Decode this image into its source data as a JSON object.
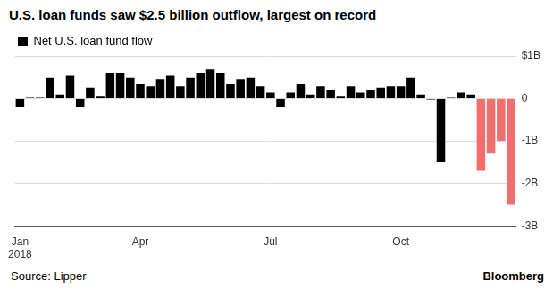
{
  "chart_data": {
    "type": "bar",
    "title": "U.S. loan funds saw $2.5 billion outflow, largest on record",
    "categories": [
      "Jan\n2018",
      null,
      null,
      null,
      null,
      null,
      null,
      null,
      null,
      null,
      null,
      null,
      "Apr",
      null,
      null,
      null,
      null,
      null,
      null,
      null,
      null,
      null,
      null,
      null,
      null,
      "Jul",
      null,
      null,
      null,
      null,
      null,
      null,
      null,
      null,
      null,
      null,
      null,
      null,
      "Oct",
      null,
      null,
      null,
      null,
      null,
      null,
      null,
      null,
      null,
      null,
      null
    ],
    "series": [
      {
        "name": "Net U.S. loan fund flow",
        "color": "#000000",
        "colors": [
          "#000000",
          "#000000",
          "#000000",
          "#000000",
          "#000000",
          "#000000",
          "#000000",
          "#000000",
          "#000000",
          "#000000",
          "#000000",
          "#000000",
          "#000000",
          "#000000",
          "#000000",
          "#000000",
          "#000000",
          "#000000",
          "#000000",
          "#000000",
          "#000000",
          "#000000",
          "#000000",
          "#000000",
          "#000000",
          "#000000",
          "#000000",
          "#000000",
          "#000000",
          "#000000",
          "#000000",
          "#000000",
          "#000000",
          "#000000",
          "#000000",
          "#000000",
          "#000000",
          "#000000",
          "#000000",
          "#000000",
          "#000000",
          "#000000",
          "#000000",
          "#000000",
          "#000000",
          "#000000",
          "#f26d6d",
          "#f26d6d",
          "#f26d6d",
          "#f26d6d"
        ],
        "values": [
          -0.2,
          0.02,
          0.02,
          0.5,
          0.1,
          0.55,
          -0.2,
          0.25,
          0.05,
          0.6,
          0.6,
          0.5,
          0.35,
          0.3,
          0.45,
          0.55,
          0.3,
          0.5,
          0.6,
          0.7,
          0.6,
          0.35,
          0.45,
          0.5,
          0.3,
          0.15,
          -0.2,
          0.15,
          0.35,
          0.1,
          0.3,
          0.2,
          0.05,
          0.3,
          0.15,
          0.2,
          0.25,
          0.3,
          0.3,
          0.5,
          0.1,
          -0.02,
          -1.5,
          0.02,
          0.15,
          0.1,
          -1.7,
          -1.3,
          -1.0,
          -2.5
        ]
      }
    ],
    "ylim": [
      -3,
      1
    ],
    "yticks": [
      {
        "value": 1,
        "label": "$1B"
      },
      0,
      {
        "value": -1,
        "label": "-1B"
      },
      {
        "value": -2,
        "label": "-2B"
      },
      {
        "value": -3,
        "label": "-3B"
      }
    ],
    "grid": true,
    "legend": "top-left",
    "source": "Source: Lipper",
    "credit": "Bloomberg"
  }
}
